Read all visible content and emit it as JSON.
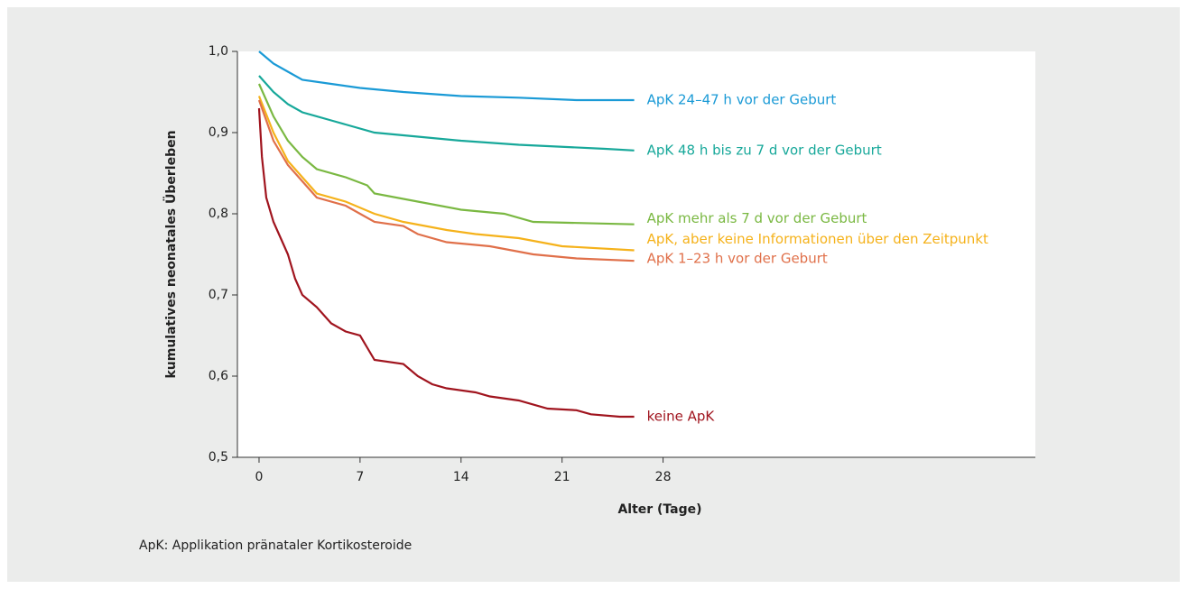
{
  "chart_data": {
    "type": "line",
    "xlabel": "Alter (Tage)",
    "ylabel": "kumulatives neonatales Überleben",
    "footnote": "ApK: Applikation pränataler Kortikosteroide",
    "xlim": [
      -1.5,
      53.8
    ],
    "ylim": [
      0.5,
      1.0
    ],
    "xticks": [
      0,
      7,
      14,
      21,
      28
    ],
    "yticks": [
      {
        "value": 0.5,
        "label": "0,5"
      },
      {
        "value": 0.6,
        "label": "0,6"
      },
      {
        "value": 0.7,
        "label": "0,7"
      },
      {
        "value": 0.8,
        "label": "0,8"
      },
      {
        "value": 0.9,
        "label": "0,9"
      },
      {
        "value": 1.0,
        "label": "1,0"
      }
    ],
    "series": [
      {
        "name": "ApK 24–47 h vor der Geburt",
        "color": "#1a9ad6",
        "x": [
          0,
          1,
          2,
          3,
          5,
          7,
          10,
          14,
          18,
          22,
          26
        ],
        "values": [
          1.0,
          0.985,
          0.975,
          0.965,
          0.96,
          0.955,
          0.95,
          0.945,
          0.943,
          0.94,
          0.94
        ]
      },
      {
        "name": "ApK 48 h bis zu 7 d vor der Geburt",
        "color": "#17a89a",
        "x": [
          0,
          1,
          2,
          3,
          5,
          6,
          8,
          11,
          14,
          18,
          24,
          26
        ],
        "values": [
          0.97,
          0.95,
          0.935,
          0.925,
          0.915,
          0.91,
          0.9,
          0.895,
          0.89,
          0.885,
          0.88,
          0.878
        ]
      },
      {
        "name": "ApK mehr als 7 d vor der Geburt",
        "color": "#7ab842",
        "x": [
          0,
          1,
          2,
          3,
          4,
          6,
          7.5,
          8,
          11,
          14,
          17,
          19,
          26
        ],
        "values": [
          0.96,
          0.92,
          0.89,
          0.87,
          0.855,
          0.845,
          0.835,
          0.825,
          0.815,
          0.805,
          0.8,
          0.79,
          0.787
        ]
      },
      {
        "name": "ApK, aber keine Informationen über den Zeitpunkt",
        "color": "#f5b21b",
        "x": [
          0,
          1,
          2,
          3,
          4,
          6,
          8,
          10,
          13,
          15,
          18,
          21,
          26
        ],
        "values": [
          0.945,
          0.9,
          0.865,
          0.845,
          0.825,
          0.815,
          0.8,
          0.79,
          0.78,
          0.775,
          0.77,
          0.76,
          0.755
        ]
      },
      {
        "name": "ApK 1–23 h vor der Geburt",
        "color": "#e0704a",
        "x": [
          0,
          1,
          2,
          3,
          4,
          6,
          7,
          8,
          10,
          11,
          13,
          16,
          19,
          22,
          26
        ],
        "values": [
          0.94,
          0.89,
          0.86,
          0.84,
          0.82,
          0.81,
          0.8,
          0.79,
          0.785,
          0.775,
          0.765,
          0.76,
          0.75,
          0.745,
          0.742
        ]
      },
      {
        "name": "keine ApK",
        "color": "#a0141e",
        "x": [
          0,
          0.2,
          0.5,
          1,
          1.5,
          2,
          2.5,
          3,
          4,
          5,
          6,
          7,
          7.5,
          8,
          10,
          11,
          12,
          13,
          15,
          16,
          18,
          20,
          22,
          23,
          25,
          26
        ],
        "values": [
          0.93,
          0.87,
          0.82,
          0.79,
          0.77,
          0.75,
          0.72,
          0.7,
          0.685,
          0.665,
          0.655,
          0.65,
          0.635,
          0.62,
          0.615,
          0.6,
          0.59,
          0.585,
          0.58,
          0.575,
          0.57,
          0.56,
          0.558,
          0.553,
          0.55,
          0.55
        ]
      }
    ]
  }
}
